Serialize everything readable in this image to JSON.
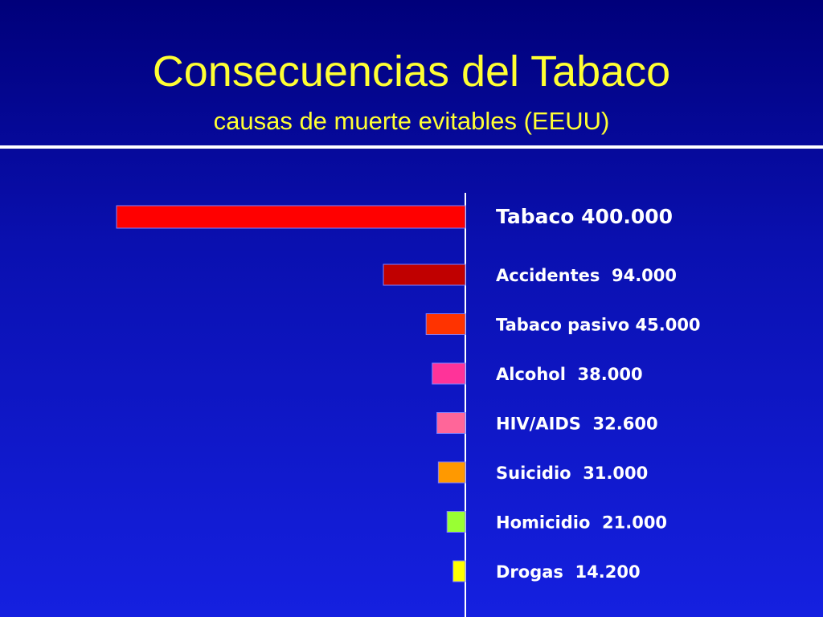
{
  "slide": {
    "title": "Consecuencias del Tabaco",
    "subtitle": "causas de muerte evitables (EEUU)"
  },
  "chart_data": {
    "type": "bar",
    "orientation": "horizontal",
    "direction": "leftward",
    "categories": [
      "Tabaco",
      "Accidentes",
      "Tabaco pasivo",
      "Alcohol",
      "HIV/AIDS",
      "Suicidio",
      "Homicidio",
      "Drogas"
    ],
    "values": [
      400000,
      94000,
      45000,
      38000,
      32600,
      31000,
      21000,
      14200
    ],
    "labels": [
      "Tabaco 400.000",
      "Accidentes  94.000",
      "Tabaco pasivo 45.000",
      "Alcohol  38.000",
      "HIV/AIDS  32.600",
      "Suicidio  31.000",
      "Homicidio  21.000",
      "Drogas  14.200"
    ],
    "colors": [
      "#ff0000",
      "#c00000",
      "#ff3300",
      "#ff3399",
      "#ff6699",
      "#ff9900",
      "#99ff33",
      "#ffff00"
    ],
    "xlim": [
      0,
      400000
    ],
    "grid": false
  }
}
